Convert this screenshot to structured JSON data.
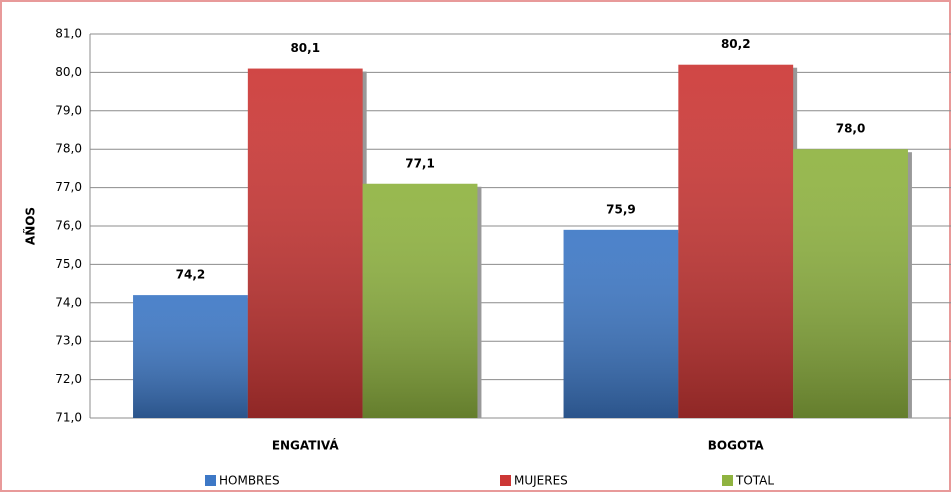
{
  "chart_data": {
    "type": "bar",
    "y_label": "AÑOS",
    "categories": [
      "ENGATIVÁ",
      "BOGOTA"
    ],
    "series": [
      {
        "name": "HOMBRES",
        "color": "#3d78c6",
        "values": [
          74.2,
          75.9
        ],
        "value_labels": [
          "74,2",
          "75,9"
        ]
      },
      {
        "name": "MUJERES",
        "color": "#cc3735",
        "values": [
          80.1,
          80.2
        ],
        "value_labels": [
          "80,1",
          "80,2"
        ]
      },
      {
        "name": "TOTAL",
        "color": "#8fb340",
        "values": [
          77.1,
          78.0
        ],
        "value_labels": [
          "77,1",
          "78,0"
        ]
      }
    ],
    "ylim": [
      71,
      81
    ],
    "yticks": [
      {
        "value": 71,
        "label": "71,0"
      },
      {
        "value": 72,
        "label": "72,0"
      },
      {
        "value": 73,
        "label": "73,0"
      },
      {
        "value": 74,
        "label": "74,0"
      },
      {
        "value": 75,
        "label": "75,0"
      },
      {
        "value": 76,
        "label": "76,0"
      },
      {
        "value": 77,
        "label": "77,0"
      },
      {
        "value": 78,
        "label": "78,0"
      },
      {
        "value": 79,
        "label": "79,0"
      },
      {
        "value": 80,
        "label": "80,0"
      },
      {
        "value": 81,
        "label": "81,0"
      }
    ],
    "grid": true,
    "legend": "bottom"
  }
}
